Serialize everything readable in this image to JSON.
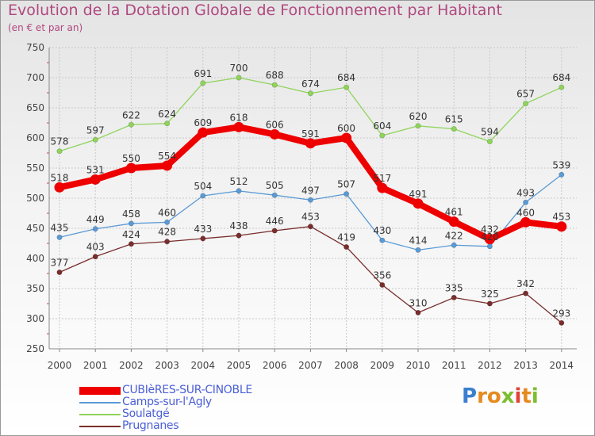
{
  "title": "Evolution de la Dotation Globale de Fonctionnement par Habitant",
  "subtitle": "(en € et par an)",
  "logo": {
    "letters": [
      {
        "ch": "P",
        "color": "#3a7fd0"
      },
      {
        "ch": "r",
        "color": "#e58a1f"
      },
      {
        "ch": "o",
        "color": "#e58a1f"
      },
      {
        "ch": "x",
        "color": "#7bbf2e"
      },
      {
        "ch": "i",
        "color": "#e0433a"
      },
      {
        "ch": "t",
        "color": "#e58a1f"
      },
      {
        "ch": "i",
        "color": "#7bbf2e"
      }
    ]
  },
  "chart_data": {
    "type": "line",
    "x": [
      "2000",
      "2001",
      "2002",
      "2003",
      "2004",
      "2005",
      "2006",
      "2007",
      "2008",
      "2009",
      "2010",
      "2011",
      "2012",
      "2013",
      "2014"
    ],
    "ylim": [
      250,
      750
    ],
    "yticks": [
      "250",
      "300",
      "350",
      "400",
      "450",
      "500",
      "550",
      "600",
      "650",
      "700",
      "750"
    ],
    "grid": true,
    "legend_position": "bottom-left",
    "series": [
      {
        "name": "Soulatgé",
        "color": "#8fd45a",
        "values": [
          578,
          597,
          622,
          624,
          691,
          700,
          688,
          674,
          684,
          604,
          620,
          615,
          594,
          657,
          684
        ]
      },
      {
        "name": "Camps-sur-l'Agly",
        "color": "#5a9ad5",
        "values": [
          435,
          449,
          458,
          460,
          504,
          512,
          505,
          497,
          507,
          430,
          414,
          422,
          420,
          493,
          539
        ],
        "labels": [
          "435",
          "449",
          "458",
          "460",
          "504",
          "512",
          "505",
          "497",
          "507",
          "430",
          "414",
          "422",
          "",
          "493",
          "539"
        ]
      },
      {
        "name": "Prugnanes",
        "color": "#7a2d2d",
        "values": [
          377,
          403,
          424,
          428,
          433,
          438,
          446,
          453,
          419,
          356,
          310,
          335,
          325,
          342,
          293
        ]
      },
      {
        "name": "CUBIèRES-SUR-CINOBLE",
        "color": "#ee0000",
        "bold": true,
        "values": [
          518,
          531,
          550,
          554,
          609,
          618,
          606,
          591,
          600,
          517,
          491,
          461,
          432,
          460,
          453
        ],
        "labels": [
          "518",
          "531",
          "550",
          "554",
          "609",
          "618",
          "606",
          "591",
          "600",
          "517",
          "491",
          "461",
          "432",
          "460",
          "453"
        ]
      }
    ],
    "extra_labels": [
      {
        "series": 1,
        "index": 12,
        "text": "420"
      }
    ]
  },
  "legend": [
    {
      "label": "CUBIèRES-SUR-CINOBLE",
      "color": "#ee0000",
      "thick": true
    },
    {
      "label": "Camps-sur-l'Agly",
      "color": "#5a9ad5",
      "thick": false
    },
    {
      "label": "Soulatgé",
      "color": "#8fd45a",
      "thick": false
    },
    {
      "label": "Prugnanes",
      "color": "#7a2d2d",
      "thick": false
    }
  ]
}
